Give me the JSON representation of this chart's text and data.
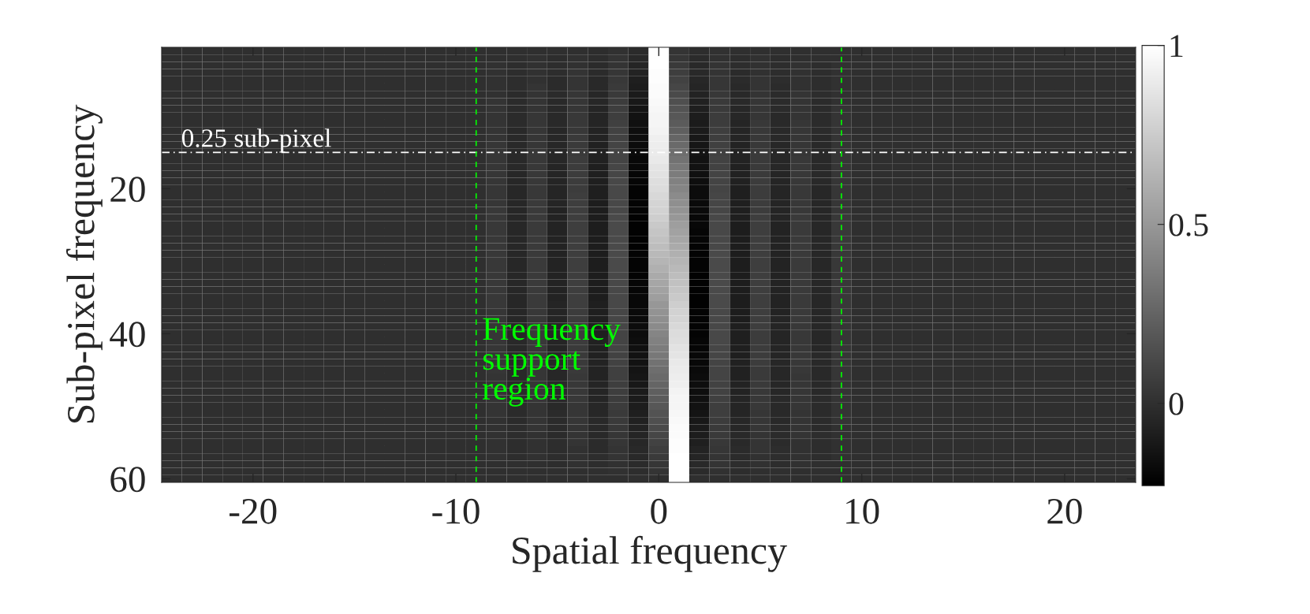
{
  "chart_data": {
    "type": "heatmap",
    "xlabel": "Spatial frequency",
    "ylabel": "Sub-pixel frequency",
    "x": [
      -24,
      -23,
      -22,
      -21,
      -20,
      -19,
      -18,
      -17,
      -16,
      -15,
      -14,
      -13,
      -12,
      -11,
      -10,
      -9,
      -8,
      -7,
      -6,
      -5,
      -4,
      -3,
      -2,
      -1,
      0,
      1,
      2,
      3,
      4,
      5,
      6,
      7,
      8,
      9,
      10,
      11,
      12,
      13,
      14,
      15,
      16,
      17,
      18,
      19,
      20,
      21,
      22,
      23
    ],
    "y": [
      1,
      2,
      3,
      4,
      5,
      6,
      7,
      8,
      9,
      10,
      11,
      12,
      13,
      14,
      15,
      16,
      17,
      18,
      19,
      20,
      21,
      22,
      23,
      24,
      25,
      26,
      27,
      28,
      29,
      30,
      31,
      32,
      33,
      34,
      35,
      36,
      37,
      38,
      39,
      40,
      41,
      42,
      43,
      44,
      45,
      46,
      47,
      48,
      49,
      50,
      51,
      52,
      53,
      54,
      55,
      56,
      57,
      58,
      59,
      60
    ],
    "xlim": [
      -24.5,
      23.5
    ],
    "xticks": [
      -20,
      -10,
      0,
      10,
      20
    ],
    "ylim": [
      60.5,
      0.5
    ],
    "yticks": [
      20,
      40,
      60
    ],
    "clim": [
      -0.23,
      1
    ],
    "cticks": [
      0,
      0.5,
      1
    ],
    "ref_lines": [
      {
        "axis": "y",
        "value": 15,
        "label": "0.25 sub-pixel",
        "color": "#ffffff",
        "line_style": "dashdot"
      },
      {
        "axis": "x",
        "value": -9,
        "label": "Frequency support region",
        "color": "#00ff00",
        "line_style": "dashed"
      },
      {
        "axis": "x",
        "value": 9,
        "color": "#00ff00",
        "line_style": "dashed"
      }
    ],
    "cells": [
      [
        0,
        0,
        0,
        0,
        0,
        0,
        0,
        0,
        0,
        0,
        0,
        0,
        0,
        0,
        0,
        0,
        0,
        0,
        0,
        0,
        0,
        -0.01,
        0.01,
        -0.02,
        1,
        0.02,
        -0.01,
        0.01,
        0,
        0,
        0,
        0,
        0,
        0,
        0,
        0,
        0,
        0,
        0,
        0,
        0,
        0,
        0,
        0,
        0,
        0,
        0,
        0
      ],
      [
        0,
        0,
        0,
        0,
        0,
        0,
        0,
        0,
        0,
        0,
        0,
        0,
        0,
        0,
        0,
        0,
        0,
        0,
        0.01,
        -0.01,
        0.01,
        -0.01,
        0.02,
        -0.03,
        1,
        0.03,
        -0.02,
        0.01,
        -0.01,
        0.01,
        -0.01,
        0,
        0,
        0,
        0,
        0,
        0,
        0,
        0,
        0,
        0,
        0,
        0,
        0,
        0,
        0,
        0,
        0
      ],
      [
        0,
        0,
        0,
        0,
        0,
        0,
        0,
        0,
        0,
        0,
        0,
        0,
        0,
        0,
        0,
        0,
        0.01,
        -0.01,
        0.01,
        -0.01,
        0.01,
        -0.02,
        0.02,
        -0.05,
        1,
        0.05,
        -0.03,
        0.02,
        -0.01,
        0.01,
        -0.01,
        0.01,
        -0.01,
        0.01,
        0,
        0,
        0,
        0,
        0,
        0,
        0,
        0,
        0,
        0,
        0,
        0,
        0,
        0
      ],
      [
        0,
        0,
        0,
        0,
        0,
        0,
        0,
        0,
        0,
        0,
        0,
        0,
        0,
        0,
        0,
        0,
        0.01,
        -0.01,
        0.01,
        -0.01,
        0.02,
        -0.02,
        0.03,
        -0.06,
        0.99,
        0.07,
        -0.03,
        0.02,
        -0.02,
        0.01,
        -0.01,
        0.01,
        -0.01,
        0.01,
        0,
        0,
        0,
        0,
        0,
        0,
        0,
        0,
        0,
        0,
        0,
        0,
        0,
        0
      ],
      [
        0,
        0,
        0,
        0,
        0,
        0,
        0,
        0,
        0,
        0,
        0,
        0,
        0,
        0,
        0,
        0,
        0.01,
        -0.01,
        0.01,
        -0.02,
        0.02,
        -0.03,
        0.04,
        -0.08,
        0.99,
        0.09,
        -0.04,
        0.03,
        -0.02,
        0.02,
        -0.01,
        0.01,
        -0.01,
        0.01,
        0,
        0,
        0,
        0,
        0,
        0,
        0,
        0,
        0,
        0,
        0,
        0,
        0,
        0
      ],
      [
        0,
        0,
        0,
        0,
        0,
        0,
        0,
        0,
        0,
        0,
        0,
        0,
        0,
        0,
        0,
        0,
        0.01,
        -0.01,
        0.02,
        -0.02,
        0.02,
        -0.03,
        0.05,
        -0.09,
        0.98,
        0.11,
        -0.05,
        0.03,
        -0.03,
        0.02,
        -0.02,
        0.01,
        -0.01,
        0.01,
        0,
        0,
        0,
        0,
        0,
        0,
        0,
        0,
        0,
        0,
        0,
        0,
        0,
        0
      ],
      [
        0,
        0,
        0,
        0,
        0,
        0,
        0,
        0,
        0,
        0,
        0,
        0,
        0,
        0,
        0,
        0,
        0.01,
        -0.02,
        0.02,
        -0.02,
        0.03,
        -0.04,
        0.05,
        -0.1,
        0.98,
        0.13,
        -0.06,
        0.04,
        -0.03,
        0.02,
        -0.02,
        0.02,
        -0.01,
        0.01,
        0,
        0,
        0,
        0,
        0,
        0,
        0,
        0,
        0,
        0,
        0,
        0,
        0,
        0
      ],
      [
        0,
        0,
        0,
        0,
        0,
        0,
        0,
        0,
        0,
        0,
        0,
        0,
        0,
        0,
        0,
        0,
        0.02,
        -0.02,
        0.02,
        -0.03,
        0.03,
        -0.04,
        0.06,
        -0.11,
        0.97,
        0.15,
        -0.07,
        0.05,
        -0.03,
        0.03,
        -0.02,
        0.02,
        -0.02,
        0.01,
        0,
        0,
        0,
        0,
        0,
        0,
        0,
        0,
        0,
        0,
        0,
        0,
        0,
        0
      ],
      [
        0,
        0,
        0,
        0,
        0,
        0,
        0,
        0,
        0,
        0,
        0,
        0,
        0,
        0,
        0,
        0,
        0.02,
        -0.02,
        0.02,
        -0.03,
        0.03,
        -0.05,
        0.07,
        -0.13,
        0.96,
        0.17,
        -0.08,
        0.05,
        -0.04,
        0.03,
        -0.02,
        0.02,
        -0.02,
        0.02,
        0,
        0,
        0,
        0,
        0,
        0,
        0,
        0,
        0,
        0,
        0,
        0,
        0,
        0
      ],
      [
        0,
        0,
        0,
        0,
        0,
        0,
        0,
        0,
        0,
        0,
        0,
        0,
        0,
        0,
        0,
        0,
        0.02,
        -0.02,
        0.03,
        -0.03,
        0.04,
        -0.05,
        0.07,
        -0.14,
        0.95,
        0.19,
        -0.09,
        0.06,
        -0.04,
        0.03,
        -0.03,
        0.02,
        -0.02,
        0.02,
        0,
        0,
        0,
        0,
        0,
        0,
        0,
        0,
        0,
        0,
        0,
        0,
        0,
        0
      ],
      [
        0,
        0,
        0,
        0,
        0,
        0,
        0,
        0,
        0,
        0,
        0,
        0,
        0,
        0,
        0,
        0,
        0.02,
        -0.02,
        0.03,
        -0.03,
        0.04,
        -0.05,
        0.08,
        -0.15,
        0.95,
        0.21,
        -0.1,
        0.06,
        -0.05,
        0.04,
        -0.03,
        0.03,
        -0.02,
        0.02,
        0,
        0,
        0,
        0,
        0,
        0,
        0,
        0,
        0,
        0,
        0,
        0,
        0,
        0
      ],
      [
        0,
        0,
        0,
        0,
        0,
        0,
        0,
        0,
        0,
        0,
        0,
        0,
        0,
        0,
        0,
        0,
        0.02,
        -0.03,
        0.03,
        -0.04,
        0.04,
        -0.06,
        0.09,
        -0.16,
        0.94,
        0.23,
        -0.1,
        0.07,
        -0.05,
        0.04,
        -0.03,
        0.03,
        -0.02,
        0.02,
        0,
        0,
        0,
        0,
        0,
        0,
        0,
        0,
        0,
        0,
        0,
        0,
        0,
        0
      ],
      [
        0,
        0,
        0,
        0,
        0,
        0,
        0,
        0,
        0,
        0,
        0,
        0,
        0,
        0,
        0,
        0,
        0.02,
        -0.03,
        0.03,
        -0.04,
        0.05,
        -0.06,
        0.09,
        -0.16,
        0.92,
        0.26,
        -0.11,
        0.07,
        -0.05,
        0.04,
        -0.03,
        0.03,
        -0.03,
        0.02,
        0,
        0,
        0,
        0,
        0,
        0,
        0,
        0,
        0,
        0,
        0,
        0,
        0,
        0
      ],
      [
        0,
        0,
        0,
        0,
        0,
        0,
        0,
        0,
        0,
        0,
        0,
        0,
        0,
        0,
        0,
        0,
        0.03,
        -0.03,
        0.03,
        -0.04,
        0.05,
        -0.07,
        0.1,
        -0.17,
        0.91,
        0.28,
        -0.12,
        0.08,
        -0.06,
        0.04,
        -0.04,
        0.03,
        -0.03,
        0.02,
        0,
        0,
        0,
        0,
        0,
        0,
        0,
        0,
        0,
        0,
        0,
        0,
        0,
        0
      ],
      [
        0,
        0,
        0,
        0,
        0,
        0,
        0,
        0,
        0,
        0,
        0,
        0,
        0,
        0,
        0,
        0,
        0.03,
        -0.03,
        0.04,
        -0.04,
        0.05,
        -0.07,
        0.1,
        -0.18,
        0.9,
        0.3,
        -0.13,
        0.08,
        -0.06,
        0.05,
        -0.04,
        0.03,
        -0.03,
        0.03,
        0,
        0,
        0,
        0,
        0,
        0,
        0,
        0,
        0,
        0,
        0,
        0,
        0,
        0
      ],
      [
        0,
        0,
        0,
        0,
        0,
        0,
        0,
        0,
        0,
        0,
        0,
        0,
        0,
        0,
        0,
        0,
        0.03,
        -0.03,
        0.04,
        -0.04,
        0.06,
        -0.07,
        0.1,
        -0.19,
        0.89,
        0.32,
        -0.14,
        0.09,
        -0.06,
        0.05,
        -0.04,
        0.04,
        -0.03,
        0.03,
        0,
        0,
        0,
        0,
        0,
        0,
        0,
        0,
        0,
        0,
        0,
        0,
        0,
        0
      ],
      [
        0,
        0,
        0,
        0,
        0,
        0,
        0,
        0,
        0,
        0,
        0,
        0,
        0,
        0,
        0,
        0,
        0.03,
        -0.03,
        0.04,
        -0.05,
        0.06,
        -0.08,
        0.11,
        -0.19,
        0.87,
        0.35,
        -0.14,
        0.09,
        -0.07,
        0.05,
        -0.04,
        0.04,
        -0.03,
        0.03,
        0,
        0,
        0,
        0,
        0,
        0,
        0,
        0,
        0,
        0,
        0,
        0,
        0,
        0
      ],
      [
        0,
        0,
        0,
        0,
        0,
        0,
        0,
        0,
        0,
        0,
        0,
        0,
        0,
        0,
        0,
        0,
        0.03,
        -0.04,
        0.04,
        -0.05,
        0.06,
        -0.08,
        0.11,
        -0.2,
        0.86,
        0.37,
        -0.15,
        0.1,
        -0.07,
        0.05,
        -0.05,
        0.04,
        -0.03,
        0.03,
        0,
        0,
        0,
        0,
        0,
        0,
        0,
        0,
        0,
        0,
        0,
        0,
        0,
        0
      ],
      [
        0,
        0,
        0,
        0,
        0,
        0,
        0,
        0,
        0,
        0,
        0,
        0,
        0,
        0,
        0,
        0,
        0.03,
        -0.04,
        0.04,
        -0.05,
        0.06,
        -0.08,
        0.12,
        -0.2,
        0.84,
        0.39,
        -0.16,
        0.1,
        -0.07,
        0.06,
        -0.05,
        0.04,
        -0.03,
        0.03,
        0,
        0,
        0,
        0,
        0,
        0,
        0,
        0,
        0,
        0,
        0,
        0,
        0,
        0
      ],
      [
        0,
        0,
        0,
        0,
        0,
        0,
        0,
        0,
        0,
        0,
        0,
        0,
        0,
        0,
        0,
        0,
        0.03,
        -0.04,
        0.04,
        -0.05,
        0.06,
        -0.08,
        0.12,
        -0.21,
        0.83,
        0.41,
        -0.17,
        0.1,
        -0.08,
        0.06,
        -0.05,
        0.04,
        -0.04,
        0.03,
        0,
        0,
        0,
        0,
        0,
        0,
        0,
        0,
        0,
        0,
        0,
        0,
        0,
        0
      ],
      [
        0,
        0,
        0,
        0,
        0,
        0,
        0,
        0,
        0,
        0,
        0,
        0,
        0,
        0,
        0,
        0,
        0.03,
        -0.04,
        0.04,
        -0.05,
        0.07,
        -0.08,
        0.12,
        -0.21,
        0.81,
        0.44,
        -0.17,
        0.11,
        -0.08,
        0.06,
        -0.05,
        0.04,
        -0.04,
        0.03,
        0,
        0,
        0,
        0,
        0,
        0,
        0,
        0,
        0,
        0,
        0,
        0,
        0,
        0
      ],
      [
        0,
        0,
        0,
        0,
        0,
        0,
        0,
        0,
        0,
        0,
        0,
        0,
        0,
        0,
        0,
        0,
        0.03,
        -0.04,
        0.05,
        -0.05,
        0.07,
        -0.09,
        0.12,
        -0.21,
        0.79,
        0.46,
        -0.18,
        0.11,
        -0.08,
        0.06,
        -0.05,
        0.04,
        -0.04,
        0.03,
        0,
        0,
        0,
        0,
        0,
        0,
        0,
        0,
        0,
        0,
        0,
        0,
        0,
        0
      ],
      [
        0,
        0,
        0,
        0,
        0,
        0,
        0,
        0,
        0,
        0,
        0,
        0,
        0,
        0,
        0,
        0,
        0.04,
        -0.04,
        0.05,
        -0.06,
        0.07,
        -0.09,
        0.12,
        -0.21,
        0.78,
        0.48,
        -0.18,
        0.11,
        -0.08,
        0.06,
        -0.05,
        0.04,
        -0.04,
        0.03,
        0,
        0,
        0,
        0,
        0,
        0,
        0,
        0,
        0,
        0,
        0,
        0,
        0,
        0
      ],
      [
        0,
        0,
        0,
        0,
        0,
        0,
        0,
        0,
        0,
        0,
        0,
        0,
        0,
        0,
        0,
        0,
        0.04,
        -0.04,
        0.05,
        -0.06,
        0.07,
        -0.09,
        0.13,
        -0.22,
        0.76,
        0.5,
        -0.19,
        0.12,
        -0.08,
        0.07,
        -0.05,
        0.05,
        -0.04,
        0.04,
        0,
        0,
        0,
        0,
        0,
        0,
        0,
        0,
        0,
        0,
        0,
        0,
        0,
        0
      ],
      [
        0,
        0,
        0,
        0,
        0,
        0,
        0,
        0,
        0,
        0,
        0,
        0,
        0,
        0,
        0,
        0,
        0.04,
        -0.04,
        0.05,
        -0.06,
        0.07,
        -0.09,
        0.13,
        -0.22,
        0.74,
        0.53,
        -0.19,
        0.12,
        -0.09,
        0.07,
        -0.06,
        0.05,
        -0.04,
        0.04,
        0,
        0,
        0,
        0,
        0,
        0,
        0,
        0,
        0,
        0,
        0,
        0,
        0,
        0
      ],
      [
        0,
        0,
        0,
        0,
        0,
        0,
        0,
        0,
        0,
        0,
        0,
        0,
        0,
        0,
        0,
        0,
        0.04,
        -0.04,
        0.05,
        -0.06,
        0.07,
        -0.09,
        0.13,
        -0.22,
        0.72,
        0.55,
        -0.2,
        0.12,
        -0.09,
        0.07,
        -0.06,
        0.05,
        -0.04,
        0.04,
        0,
        0,
        0,
        0,
        0,
        0,
        0,
        0,
        0,
        0,
        0,
        0,
        0,
        0
      ],
      [
        0,
        0,
        0,
        0,
        0,
        0,
        0,
        0,
        0,
        0,
        0,
        0,
        0,
        0,
        0,
        0,
        0.04,
        -0.04,
        0.05,
        -0.06,
        0.07,
        -0.09,
        0.13,
        -0.22,
        0.7,
        0.57,
        -0.2,
        0.12,
        -0.09,
        0.07,
        -0.06,
        0.05,
        -0.04,
        0.04,
        0,
        0,
        0,
        0,
        0,
        0,
        0,
        0,
        0,
        0,
        0,
        0,
        0,
        0
      ],
      [
        0,
        0,
        0,
        0,
        0,
        0,
        0,
        0,
        0,
        0,
        0,
        0,
        0,
        0,
        0,
        0,
        0.04,
        -0.04,
        0.05,
        -0.06,
        0.07,
        -0.09,
        0.13,
        -0.22,
        0.68,
        0.59,
        -0.21,
        0.12,
        -0.09,
        0.07,
        -0.06,
        0.05,
        -0.04,
        0.04,
        0,
        0,
        0,
        0,
        0,
        0,
        0,
        0,
        0,
        0,
        0,
        0,
        0,
        0
      ],
      [
        0,
        0,
        0,
        0,
        0,
        0,
        0,
        0,
        0,
        0,
        0,
        0,
        0,
        0,
        0,
        0,
        0.04,
        -0.04,
        0.05,
        -0.06,
        0.07,
        -0.09,
        0.13,
        -0.21,
        0.66,
        0.62,
        -0.21,
        0.13,
        -0.09,
        0.07,
        -0.06,
        0.05,
        -0.04,
        0.04,
        0,
        0,
        0,
        0,
        0,
        0,
        0,
        0,
        0,
        0,
        0,
        0,
        0,
        0
      ],
      [
        0,
        0,
        0,
        0,
        0,
        0,
        0,
        0,
        0,
        0,
        0,
        0,
        0,
        0,
        0,
        0,
        0.04,
        -0.04,
        0.05,
        -0.06,
        0.07,
        -0.09,
        0.13,
        -0.21,
        0.64,
        0.64,
        -0.21,
        0.13,
        -0.09,
        0.07,
        -0.06,
        0.05,
        -0.04,
        0.04,
        0,
        0,
        0,
        0,
        0,
        0,
        0,
        0,
        0,
        0,
        0,
        0,
        0,
        0
      ],
      [
        0,
        0,
        0,
        0,
        0,
        0,
        0,
        0,
        0,
        0,
        0,
        0,
        0,
        0,
        0,
        0,
        0.04,
        -0.04,
        0.05,
        -0.06,
        0.07,
        -0.09,
        0.13,
        -0.21,
        0.62,
        0.66,
        -0.21,
        0.13,
        -0.09,
        0.07,
        -0.06,
        0.05,
        -0.04,
        0.04,
        0,
        0,
        0,
        0,
        0,
        0,
        0,
        0,
        0,
        0,
        0,
        0,
        0,
        0
      ],
      [
        0,
        0,
        0,
        0,
        0,
        0,
        0,
        0,
        0,
        0,
        0,
        0,
        0,
        0,
        0,
        0,
        0.04,
        -0.04,
        0.05,
        -0.06,
        0.07,
        -0.09,
        0.12,
        -0.21,
        0.59,
        0.68,
        -0.22,
        0.13,
        -0.09,
        0.07,
        -0.06,
        0.05,
        -0.04,
        0.04,
        0,
        0,
        0,
        0,
        0,
        0,
        0,
        0,
        0,
        0,
        0,
        0,
        0,
        0
      ],
      [
        0,
        0,
        0,
        0,
        0,
        0,
        0,
        0,
        0,
        0,
        0,
        0,
        0,
        0,
        0,
        0,
        0.04,
        -0.04,
        0.05,
        -0.06,
        0.07,
        -0.09,
        0.12,
        -0.2,
        0.57,
        0.7,
        -0.22,
        0.13,
        -0.09,
        0.07,
        -0.06,
        0.05,
        -0.04,
        0.04,
        0,
        0,
        0,
        0,
        0,
        0,
        0,
        0,
        0,
        0,
        0,
        0,
        0,
        0
      ],
      [
        0,
        0,
        0,
        0,
        0,
        0,
        0,
        0,
        0,
        0,
        0,
        0,
        0,
        0,
        0,
        0,
        0.04,
        -0.04,
        0.05,
        -0.06,
        0.07,
        -0.09,
        0.12,
        -0.2,
        0.55,
        0.72,
        -0.22,
        0.13,
        -0.09,
        0.07,
        -0.06,
        0.05,
        -0.04,
        0.04,
        0,
        0,
        0,
        0,
        0,
        0,
        0,
        0,
        0,
        0,
        0,
        0,
        0,
        0
      ],
      [
        0,
        0,
        0,
        0,
        0,
        0,
        0,
        0,
        0,
        0,
        0,
        0,
        0,
        0,
        0,
        0,
        0.04,
        -0.04,
        0.05,
        -0.06,
        0.07,
        -0.09,
        0.12,
        -0.19,
        0.53,
        0.74,
        -0.22,
        0.13,
        -0.09,
        0.07,
        -0.06,
        0.05,
        -0.04,
        0.04,
        0,
        0,
        0,
        0,
        0,
        0,
        0,
        0,
        0,
        0,
        0,
        0,
        0,
        0
      ],
      [
        0,
        0,
        0,
        0,
        0,
        0,
        0,
        0,
        0,
        0,
        0,
        0,
        0,
        0,
        0,
        0,
        0.04,
        -0.04,
        0.05,
        -0.05,
        0.07,
        -0.08,
        0.12,
        -0.19,
        0.5,
        0.76,
        -0.22,
        0.13,
        -0.09,
        0.07,
        -0.06,
        0.05,
        -0.04,
        0.04,
        0,
        0,
        0,
        0,
        0,
        0,
        0,
        0,
        0,
        0,
        0,
        0,
        0,
        0
      ],
      [
        0,
        0,
        0,
        0,
        0,
        0,
        0,
        0,
        0,
        0,
        0,
        0,
        0,
        0,
        0,
        0,
        0.03,
        -0.04,
        0.04,
        -0.05,
        0.06,
        -0.08,
        0.11,
        -0.18,
        0.48,
        0.78,
        -0.21,
        0.12,
        -0.09,
        0.07,
        -0.06,
        0.05,
        -0.04,
        0.04,
        0,
        0,
        0,
        0,
        0,
        0,
        0,
        0,
        0,
        0,
        0,
        0,
        0,
        0
      ],
      [
        0,
        0,
        0,
        0,
        0,
        0,
        0,
        0,
        0,
        0,
        0,
        0,
        0,
        0,
        0,
        0,
        0.03,
        -0.04,
        0.04,
        -0.05,
        0.06,
        -0.08,
        0.11,
        -0.18,
        0.46,
        0.79,
        -0.21,
        0.12,
        -0.09,
        0.07,
        -0.05,
        0.05,
        -0.04,
        0.03,
        0,
        0,
        0,
        0,
        0,
        0,
        0,
        0,
        0,
        0,
        0,
        0,
        0,
        0
      ],
      [
        0,
        0,
        0,
        0,
        0,
        0,
        0,
        0,
        0,
        0,
        0,
        0,
        0,
        0,
        0,
        0,
        0.03,
        -0.04,
        0.04,
        -0.05,
        0.06,
        -0.08,
        0.11,
        -0.17,
        0.44,
        0.81,
        -0.21,
        0.12,
        -0.08,
        0.07,
        -0.05,
        0.04,
        -0.04,
        0.03,
        0,
        0,
        0,
        0,
        0,
        0,
        0,
        0,
        0,
        0,
        0,
        0,
        0,
        0
      ],
      [
        0,
        0,
        0,
        0,
        0,
        0,
        0,
        0,
        0,
        0,
        0,
        0,
        0,
        0,
        0,
        0,
        0.03,
        -0.04,
        0.04,
        -0.05,
        0.06,
        -0.08,
        0.1,
        -0.17,
        0.41,
        0.83,
        -0.21,
        0.12,
        -0.08,
        0.06,
        -0.05,
        0.04,
        -0.04,
        0.03,
        0,
        0,
        0,
        0,
        0,
        0,
        0,
        0,
        0,
        0,
        0,
        0,
        0,
        0
      ],
      [
        0,
        0,
        0,
        0,
        0,
        0,
        0,
        0,
        0,
        0,
        0,
        0,
        0,
        0,
        0,
        0,
        0.03,
        -0.03,
        0.04,
        -0.05,
        0.06,
        -0.07,
        0.1,
        -0.16,
        0.39,
        0.84,
        -0.2,
        0.12,
        -0.08,
        0.06,
        -0.05,
        0.04,
        -0.04,
        0.03,
        0,
        0,
        0,
        0,
        0,
        0,
        0,
        0,
        0,
        0,
        0,
        0,
        0,
        0
      ],
      [
        0,
        0,
        0,
        0,
        0,
        0,
        0,
        0,
        0,
        0,
        0,
        0,
        0,
        0,
        0,
        0,
        0.03,
        -0.03,
        0.04,
        -0.05,
        0.05,
        -0.07,
        0.1,
        -0.15,
        0.37,
        0.86,
        -0.2,
        0.11,
        -0.08,
        0.06,
        -0.05,
        0.04,
        -0.04,
        0.03,
        0,
        0,
        0,
        0,
        0,
        0,
        0,
        0,
        0,
        0,
        0,
        0,
        0,
        0
      ],
      [
        0,
        0,
        0,
        0,
        0,
        0,
        0,
        0,
        0,
        0,
        0,
        0,
        0,
        0,
        0,
        0,
        0.03,
        -0.03,
        0.04,
        -0.04,
        0.05,
        -0.07,
        0.09,
        -0.14,
        0.35,
        0.87,
        -0.19,
        0.11,
        -0.08,
        0.06,
        -0.05,
        0.04,
        -0.03,
        0.03,
        0,
        0,
        0,
        0,
        0,
        0,
        0,
        0,
        0,
        0,
        0,
        0,
        0,
        0
      ],
      [
        0,
        0,
        0,
        0,
        0,
        0,
        0,
        0,
        0,
        0,
        0,
        0,
        0,
        0,
        0,
        0,
        0.03,
        -0.03,
        0.04,
        -0.04,
        0.05,
        -0.06,
        0.09,
        -0.14,
        0.32,
        0.89,
        -0.19,
        0.1,
        -0.07,
        0.06,
        -0.04,
        0.04,
        -0.03,
        0.03,
        0,
        0,
        0,
        0,
        0,
        0,
        0,
        0,
        0,
        0,
        0,
        0,
        0,
        0
      ],
      [
        0,
        0,
        0,
        0,
        0,
        0,
        0,
        0,
        0,
        0,
        0,
        0,
        0,
        0,
        0,
        0,
        0.03,
        -0.03,
        0.03,
        -0.04,
        0.05,
        -0.06,
        0.08,
        -0.13,
        0.3,
        0.9,
        -0.18,
        0.1,
        -0.07,
        0.05,
        -0.04,
        0.04,
        -0.03,
        0.03,
        0,
        0,
        0,
        0,
        0,
        0,
        0,
        0,
        0,
        0,
        0,
        0,
        0,
        0
      ],
      [
        0,
        0,
        0,
        0,
        0,
        0,
        0,
        0,
        0,
        0,
        0,
        0,
        0,
        0,
        0,
        0,
        0.02,
        -0.03,
        0.03,
        -0.04,
        0.04,
        -0.06,
        0.08,
        -0.12,
        0.28,
        0.91,
        -0.17,
        0.1,
        -0.07,
        0.05,
        -0.04,
        0.03,
        -0.03,
        0.03,
        0,
        0,
        0,
        0,
        0,
        0,
        0,
        0,
        0,
        0,
        0,
        0,
        0,
        0
      ],
      [
        0,
        0,
        0,
        0,
        0,
        0,
        0,
        0,
        0,
        0,
        0,
        0,
        0,
        0,
        0,
        0,
        0.02,
        -0.03,
        0.03,
        -0.03,
        0.04,
        -0.05,
        0.07,
        -0.11,
        0.26,
        0.92,
        -0.16,
        0.09,
        -0.06,
        0.05,
        -0.04,
        0.03,
        -0.03,
        0.02,
        0,
        0,
        0,
        0,
        0,
        0,
        0,
        0,
        0,
        0,
        0,
        0,
        0,
        0
      ],
      [
        0,
        0,
        0,
        0,
        0,
        0,
        0,
        0,
        0,
        0,
        0,
        0,
        0,
        0,
        0,
        0,
        0.02,
        -0.02,
        0.03,
        -0.03,
        0.04,
        -0.05,
        0.07,
        -0.1,
        0.23,
        0.94,
        -0.16,
        0.09,
        -0.06,
        0.04,
        -0.04,
        0.03,
        -0.03,
        0.02,
        0,
        0,
        0,
        0,
        0,
        0,
        0,
        0,
        0,
        0,
        0,
        0,
        0,
        0
      ],
      [
        0,
        0,
        0,
        0,
        0,
        0,
        0,
        0,
        0,
        0,
        0,
        0,
        0,
        0,
        0,
        0,
        0.02,
        -0.02,
        0.03,
        -0.03,
        0.04,
        -0.05,
        0.06,
        -0.1,
        0.21,
        0.95,
        -0.15,
        0.08,
        -0.05,
        0.04,
        -0.03,
        0.03,
        -0.02,
        0.02,
        0,
        0,
        0,
        0,
        0,
        0,
        0,
        0,
        0,
        0,
        0,
        0,
        0,
        0
      ],
      [
        0,
        0,
        0,
        0,
        0,
        0,
        0,
        0,
        0,
        0,
        0,
        0,
        0,
        0,
        0,
        0,
        0.02,
        -0.02,
        0.02,
        -0.03,
        0.03,
        -0.04,
        0.06,
        -0.09,
        0.19,
        0.95,
        -0.14,
        0.07,
        -0.05,
        0.04,
        -0.03,
        0.03,
        -0.02,
        0.02,
        0,
        0,
        0,
        0,
        0,
        0,
        0,
        0,
        0,
        0,
        0,
        0,
        0,
        0
      ],
      [
        0,
        0,
        0,
        0,
        0,
        0,
        0,
        0,
        0,
        0,
        0,
        0,
        0,
        0,
        0,
        0,
        0.02,
        -0.02,
        0.02,
        -0.02,
        0.03,
        -0.04,
        0.05,
        -0.08,
        0.17,
        0.96,
        -0.13,
        0.07,
        -0.05,
        0.03,
        -0.03,
        0.02,
        -0.02,
        0.02,
        0,
        0,
        0,
        0,
        0,
        0,
        0,
        0,
        0,
        0,
        0,
        0,
        0,
        0
      ],
      [
        0,
        0,
        0,
        0,
        0,
        0,
        0,
        0,
        0,
        0,
        0,
        0,
        0,
        0,
        0,
        0,
        0.01,
        -0.02,
        0.02,
        -0.02,
        0.03,
        -0.03,
        0.05,
        -0.07,
        0.15,
        0.97,
        -0.11,
        0.06,
        -0.04,
        0.03,
        -0.03,
        0.02,
        -0.02,
        0.02,
        0,
        0,
        0,
        0,
        0,
        0,
        0,
        0,
        0,
        0,
        0,
        0,
        0,
        0
      ],
      [
        0,
        0,
        0,
        0,
        0,
        0,
        0,
        0,
        0,
        0,
        0,
        0,
        0,
        0,
        0,
        0,
        0.01,
        -0.01,
        0.02,
        -0.02,
        0.02,
        -0.03,
        0.04,
        -0.06,
        0.13,
        0.98,
        -0.1,
        0.05,
        -0.04,
        0.03,
        -0.02,
        0.02,
        -0.02,
        0.01,
        0,
        0,
        0,
        0,
        0,
        0,
        0,
        0,
        0,
        0,
        0,
        0,
        0,
        0
      ],
      [
        0,
        0,
        0,
        0,
        0,
        0,
        0,
        0,
        0,
        0,
        0,
        0,
        0,
        0,
        0,
        0,
        0.01,
        -0.01,
        0.01,
        -0.02,
        0.02,
        -0.03,
        0.03,
        -0.05,
        0.11,
        0.98,
        -0.09,
        0.05,
        -0.03,
        0.02,
        -0.02,
        0.02,
        -0.01,
        0.01,
        0,
        0,
        0,
        0,
        0,
        0,
        0,
        0,
        0,
        0,
        0,
        0,
        0,
        0
      ],
      [
        0,
        0,
        0,
        0,
        0,
        0,
        0,
        0,
        0,
        0,
        0,
        0,
        0,
        0,
        0,
        0,
        0.01,
        -0.01,
        0.01,
        -0.01,
        0.02,
        -0.02,
        0.03,
        -0.04,
        0.09,
        0.99,
        -0.08,
        0.04,
        -0.03,
        0.02,
        -0.02,
        0.01,
        -0.01,
        0.01,
        0,
        0,
        0,
        0,
        0,
        0,
        0,
        0,
        0,
        0,
        0,
        0,
        0,
        0
      ],
      [
        0,
        0,
        0,
        0,
        0,
        0,
        0,
        0,
        0,
        0,
        0,
        0,
        0,
        0,
        0,
        0,
        0.01,
        -0.01,
        0.01,
        -0.01,
        0.01,
        -0.02,
        0.02,
        -0.03,
        0.07,
        0.99,
        -0.06,
        0.03,
        -0.02,
        0.02,
        -0.01,
        0.01,
        -0.01,
        0.01,
        0,
        0,
        0,
        0,
        0,
        0,
        0,
        0,
        0,
        0,
        0,
        0,
        0,
        0
      ],
      [
        0,
        0,
        0,
        0,
        0,
        0,
        0,
        0,
        0,
        0,
        0,
        0,
        0,
        0,
        0,
        0,
        0.01,
        -0.01,
        0.01,
        -0.01,
        0.01,
        -0.01,
        0.02,
        -0.03,
        0.05,
        1,
        -0.05,
        0.02,
        -0.02,
        0.01,
        -0.01,
        0.01,
        -0.01,
        0.01,
        0,
        0,
        0,
        0,
        0,
        0,
        0,
        0,
        0,
        0,
        0,
        0,
        0,
        0
      ],
      [
        0,
        0,
        0,
        0,
        0,
        0,
        0,
        0,
        0,
        0,
        0,
        0,
        0,
        0,
        0,
        0,
        0,
        0,
        0,
        -0.01,
        0.01,
        -0.01,
        0.01,
        -0.02,
        0.03,
        1,
        -0.03,
        0.02,
        -0.01,
        0.01,
        -0.01,
        0.01,
        0,
        0,
        0,
        0,
        0,
        0,
        0,
        0,
        0,
        0,
        0,
        0,
        0,
        0,
        0,
        0
      ],
      [
        0,
        0,
        0,
        0,
        0,
        0,
        0,
        0,
        0,
        0,
        0,
        0,
        0,
        0,
        0,
        0,
        0,
        0,
        0,
        0,
        0,
        0,
        0.01,
        -0.01,
        0.02,
        1,
        -0.02,
        0.01,
        -0.01,
        0,
        0,
        0,
        0,
        0,
        0,
        0,
        0,
        0,
        0,
        0,
        0,
        0,
        0,
        0,
        0,
        0,
        0,
        0
      ],
      [
        0,
        0,
        0,
        0,
        0,
        0,
        0,
        0,
        0,
        0,
        0,
        0,
        0,
        0,
        0,
        0,
        0,
        0,
        0,
        0,
        0,
        0,
        0,
        0,
        0,
        1,
        0,
        0,
        0,
        0,
        0,
        0,
        0,
        0,
        0,
        0,
        0,
        0,
        0,
        0,
        0,
        0,
        0,
        0,
        0,
        0,
        0,
        0
      ]
    ]
  }
}
